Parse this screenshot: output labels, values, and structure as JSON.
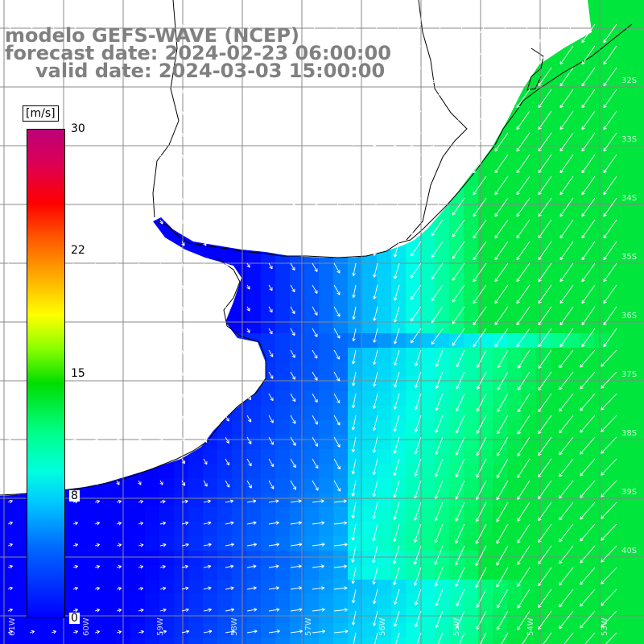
{
  "title": {
    "line1": "modelo GEFS-WAVE (NCEP)",
    "line2": "forecast date: 2024-02-23 06:00:00",
    "line3": "valid date: 2024-03-03 15:00:00"
  },
  "colorbar": {
    "units": "[m/s]",
    "ticks": [
      "30",
      "22",
      "15",
      "8",
      "0"
    ],
    "range": [
      0,
      30
    ],
    "colors": [
      "#0000ff",
      "#00ccff",
      "#00ff88",
      "#00dd00",
      "#ffff00",
      "#ff0000",
      "#bb0077"
    ]
  },
  "map": {
    "variable": "wind speed and direction",
    "latitude_labels": [
      "32S",
      "33S",
      "34S",
      "35S",
      "36S",
      "37S",
      "38S",
      "39S",
      "40S"
    ],
    "longitude_labels": [
      "61W",
      "60W",
      "59W",
      "58W",
      "57W",
      "56W",
      "55W",
      "54W",
      "53W"
    ],
    "land_color": "#ffffff",
    "grid_color": "#888888",
    "coastline_color": "#000000"
  }
}
